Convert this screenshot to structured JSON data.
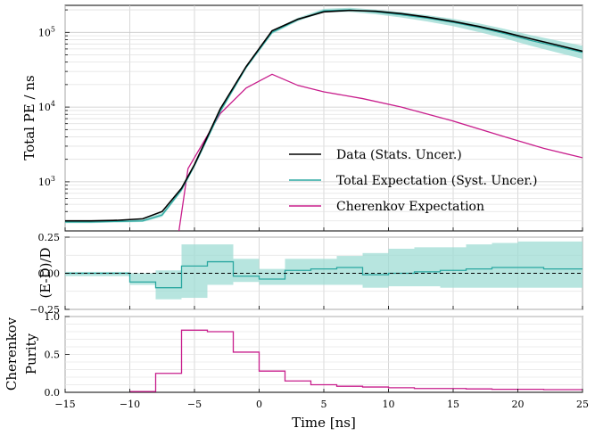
{
  "chart_data": [
    {
      "type": "line",
      "panel": "top",
      "ylabel": "Total PE / ns",
      "yscale": "log",
      "ylim": [
        220,
        230000
      ],
      "xlim": [
        -15,
        25
      ],
      "yticks": [
        {
          "v": 1000,
          "base": "10",
          "exp": "3"
        },
        {
          "v": 10000,
          "base": "10",
          "exp": "4"
        },
        {
          "v": 100000,
          "base": "10",
          "exp": "5"
        }
      ],
      "grid": true,
      "legend_position": "lower-right",
      "series": [
        {
          "name": "Data (Stats. Uncer.)",
          "color": "#000000",
          "x": [
            -15,
            -13,
            -11,
            -9,
            -7.5,
            -6,
            -5,
            -3,
            -1,
            1,
            3,
            5,
            7,
            9,
            11,
            13,
            15,
            17,
            19,
            21,
            23,
            25
          ],
          "y": [
            300,
            300,
            305,
            320,
            400,
            820,
            1700,
            9500,
            35000,
            105000,
            150000,
            188000,
            197000,
            192000,
            178000,
            160000,
            140000,
            120000,
            100000,
            82000,
            68000,
            56000
          ]
        },
        {
          "name": "Total Expectation (Syst. Uncer.)",
          "color": "#2aa7a0",
          "band_color": "#9fdcd4",
          "x": [
            -15,
            -13,
            -11,
            -9,
            -7.5,
            -6,
            -5,
            -3,
            -1,
            1,
            3,
            5,
            7,
            9,
            11,
            13,
            15,
            17,
            19,
            21,
            23,
            25
          ],
          "y": [
            290,
            290,
            295,
            300,
            360,
            780,
            1650,
            8800,
            34000,
            100000,
            148000,
            195000,
            200000,
            188000,
            172000,
            155000,
            136000,
            116000,
            96000,
            78000,
            65000,
            54000
          ],
          "lower": [
            280,
            280,
            285,
            290,
            340,
            740,
            1560,
            8300,
            32500,
            95000,
            141000,
            185000,
            188000,
            175000,
            158000,
            140000,
            121000,
            101000,
            83000,
            66000,
            54000,
            44000
          ],
          "upper": [
            305,
            305,
            310,
            315,
            385,
            830,
            1760,
            9400,
            35800,
            106000,
            157000,
            207000,
            213000,
            202000,
            187000,
            170000,
            152000,
            132000,
            111000,
            92000,
            78000,
            66000
          ]
        },
        {
          "name": "Cherenkov Expectation",
          "color": "#c81e8c",
          "x": [
            -6.2,
            -5.5,
            -3,
            -1,
            1,
            3,
            5,
            8,
            11,
            15,
            19,
            22,
            25
          ],
          "y": [
            220,
            1500,
            8200,
            18000,
            27500,
            19500,
            16000,
            13000,
            10000,
            6500,
            4000,
            2800,
            2100
          ]
        }
      ]
    },
    {
      "type": "line",
      "panel": "middle",
      "ylabel": "(E-D)/D",
      "ylim": [
        -0.25,
        0.25
      ],
      "yticks": [
        "0.25",
        "0.00",
        "−0.25"
      ],
      "xlim": [
        -15,
        25
      ],
      "reference_line": 0,
      "bins": [
        -15,
        -13,
        -11,
        -10,
        -8,
        -6,
        -4,
        -2,
        0,
        2,
        4,
        6,
        8,
        10,
        12,
        14,
        16,
        18,
        20,
        22,
        24,
        25
      ],
      "step_values": [
        0.0,
        0.0,
        0.0,
        -0.06,
        -0.1,
        0.05,
        0.08,
        -0.02,
        -0.04,
        0.02,
        0.03,
        0.04,
        -0.01,
        0.0,
        0.01,
        0.02,
        0.03,
        0.04,
        0.04,
        0.03,
        0.03
      ],
      "band_lower": [
        -0.02,
        -0.02,
        -0.02,
        -0.08,
        -0.18,
        -0.17,
        -0.08,
        -0.06,
        -0.08,
        -0.08,
        -0.08,
        -0.08,
        -0.1,
        -0.09,
        -0.09,
        -0.1,
        -0.1,
        -0.1,
        -0.1,
        -0.1,
        -0.1
      ],
      "band_upper": [
        0.01,
        0.01,
        0.01,
        0.0,
        0.02,
        0.2,
        0.2,
        0.1,
        0.03,
        0.1,
        0.1,
        0.12,
        0.14,
        0.17,
        0.18,
        0.18,
        0.2,
        0.21,
        0.22,
        0.22,
        0.22
      ]
    },
    {
      "type": "line",
      "panel": "bottom",
      "ylabel": "Cherenkov Purity",
      "ylim": [
        0,
        1.0
      ],
      "yticks": [
        "0.0",
        "0.5",
        "1.0"
      ],
      "xlim": [
        -15,
        25
      ],
      "xlabel": "Time [ns]",
      "xticks": [
        "−15",
        "−10",
        "−5",
        "0",
        "5",
        "10",
        "15",
        "20",
        "25"
      ],
      "color": "#c81e8c",
      "bins": [
        -10,
        -8,
        -6,
        -4,
        -2,
        0,
        2,
        4,
        6,
        8,
        10,
        12,
        14,
        16,
        18,
        20,
        22,
        24,
        25
      ],
      "step_values": [
        0.01,
        0.25,
        0.82,
        0.8,
        0.53,
        0.28,
        0.15,
        0.1,
        0.08,
        0.07,
        0.06,
        0.05,
        0.05,
        0.045,
        0.04,
        0.04,
        0.035,
        0.035
      ]
    }
  ]
}
